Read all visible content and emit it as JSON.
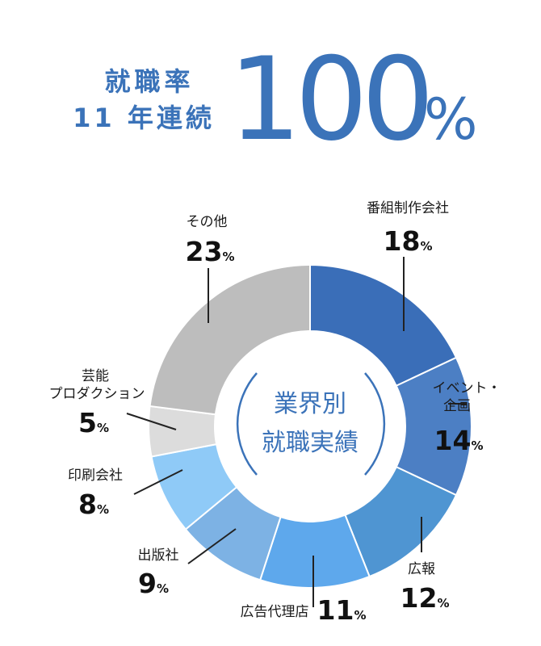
{
  "header": {
    "line1": "就職率",
    "line2": "11 年連続",
    "big_number": "100",
    "big_unit": "%"
  },
  "chart_data": {
    "type": "pie",
    "center_label": [
      "業界別",
      "就職実績"
    ],
    "percent_symbol": "%",
    "slices": [
      {
        "label": [
          "番組制作会社"
        ],
        "value": 18,
        "color": "#3a6eb8"
      },
      {
        "label": [
          "イベント・",
          "企画"
        ],
        "value": 14,
        "color": "#4c7fc4"
      },
      {
        "label": [
          "広報"
        ],
        "value": 12,
        "color": "#4f95d2"
      },
      {
        "label": [
          "広告代理店"
        ],
        "value": 11,
        "color": "#5ea8ec"
      },
      {
        "label": [
          "出版社"
        ],
        "value": 9,
        "color": "#7db2e4"
      },
      {
        "label": [
          "印刷会社"
        ],
        "value": 8,
        "color": "#8fcaf7"
      },
      {
        "label": [
          "芸能",
          "プロダクション"
        ],
        "value": 5,
        "color": "#dcdcdc"
      },
      {
        "label": [
          "その他"
        ],
        "value": 23,
        "color": "#bdbdbd"
      }
    ]
  }
}
